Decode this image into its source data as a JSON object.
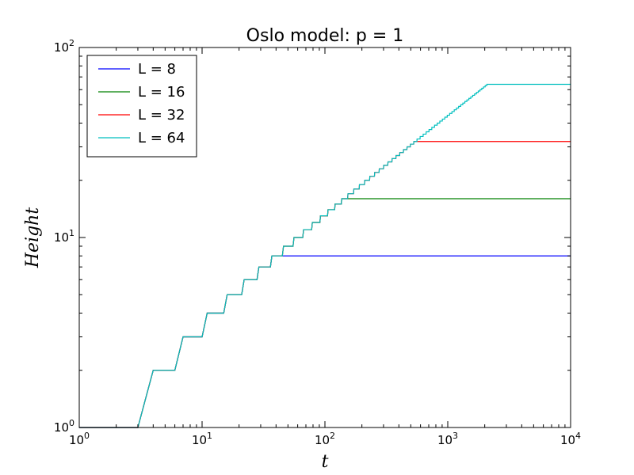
{
  "chart_data": {
    "type": "line",
    "title": "Oslo model: p = 1",
    "xlabel": "t",
    "ylabel": "Height",
    "xscale": "log",
    "yscale": "log",
    "xlim": [
      1,
      10000
    ],
    "ylim": [
      1,
      100
    ],
    "x_ticks": [
      {
        "base": "10",
        "exp": "0"
      },
      {
        "base": "10",
        "exp": "1"
      },
      {
        "base": "10",
        "exp": "2"
      },
      {
        "base": "10",
        "exp": "3"
      },
      {
        "base": "10",
        "exp": "4"
      }
    ],
    "y_ticks": [
      {
        "base": "10",
        "exp": "0"
      },
      {
        "base": "10",
        "exp": "1"
      },
      {
        "base": "10",
        "exp": "2"
      }
    ],
    "grid": false,
    "legend_position": "top-left",
    "series": [
      {
        "name": "L = 8",
        "color": "#0000ff",
        "system_size": 8,
        "saturation_time": 42,
        "saturation_height": 8
      },
      {
        "name": "L = 16",
        "color": "#008000",
        "system_size": 16,
        "saturation_time": 150,
        "saturation_height": 16
      },
      {
        "name": "L = 32",
        "color": "#ff0000",
        "system_size": 32,
        "saturation_time": 570,
        "saturation_height": 32
      },
      {
        "name": "L = 64",
        "color": "#00bfbf",
        "system_size": 64,
        "saturation_time": 2100,
        "saturation_height": 64
      }
    ]
  }
}
